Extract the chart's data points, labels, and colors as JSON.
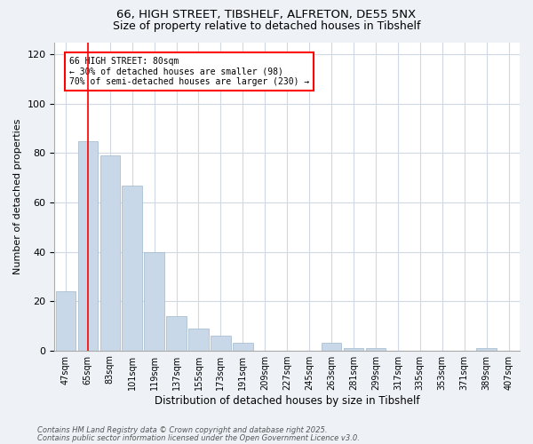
{
  "title_line1": "66, HIGH STREET, TIBSHELF, ALFRETON, DE55 5NX",
  "title_line2": "Size of property relative to detached houses in Tibshelf",
  "xlabel": "Distribution of detached houses by size in Tibshelf",
  "ylabel": "Number of detached properties",
  "categories": [
    "47sqm",
    "65sqm",
    "83sqm",
    "101sqm",
    "119sqm",
    "137sqm",
    "155sqm",
    "173sqm",
    "191sqm",
    "209sqm",
    "227sqm",
    "245sqm",
    "263sqm",
    "281sqm",
    "299sqm",
    "317sqm",
    "335sqm",
    "353sqm",
    "371sqm",
    "389sqm",
    "407sqm"
  ],
  "values": [
    24,
    85,
    79,
    67,
    40,
    14,
    9,
    6,
    3,
    0,
    0,
    0,
    3,
    1,
    1,
    0,
    0,
    0,
    0,
    1,
    0
  ],
  "bar_color": "#c8d8e8",
  "bar_edge_color": "#a0b8cc",
  "red_line_x": 1.0,
  "ylim": [
    0,
    125
  ],
  "yticks": [
    0,
    20,
    40,
    60,
    80,
    100,
    120
  ],
  "annotation_title": "66 HIGH STREET: 80sqm",
  "annotation_line1": "← 30% of detached houses are smaller (98)",
  "annotation_line2": "70% of semi-detached houses are larger (230) →",
  "footnote_line1": "Contains HM Land Registry data © Crown copyright and database right 2025.",
  "footnote_line2": "Contains public sector information licensed under the Open Government Licence v3.0.",
  "bg_color": "#eef2f7",
  "plot_bg_color": "#ffffff",
  "grid_color": "#d0d8e4"
}
